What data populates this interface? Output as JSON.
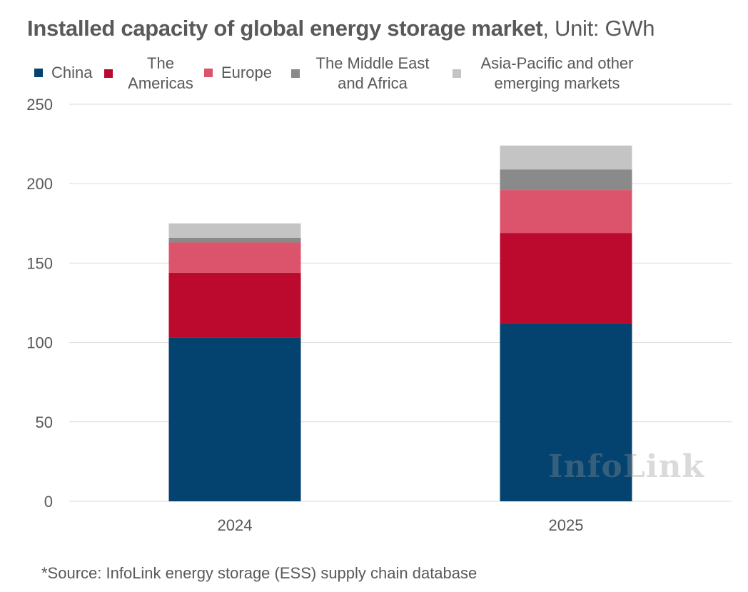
{
  "title": {
    "bold": "Installed capacity of global energy storage market",
    "rest": ", Unit: GWh"
  },
  "source": "*Source: InfoLink energy storage (ESS) supply chain database",
  "watermark": "InfoLink",
  "colors": {
    "china": "#04426f",
    "americas": "#bb0a2e",
    "europe": "#dc546b",
    "mea": "#8a8a8a",
    "apac": "#c4c4c4",
    "grid": "#d9d9d9"
  },
  "legend": [
    {
      "label": "China",
      "color": "#04426f"
    },
    {
      "label": "The Americas",
      "color": "#bb0a2e"
    },
    {
      "label": "Europe",
      "color": "#dc546b"
    },
    {
      "label": "The Middle East and Africa",
      "color": "#8a8a8a"
    },
    {
      "label": "Asia-Pacific and other emerging markets",
      "color": "#c4c4c4"
    }
  ],
  "chart_data": {
    "type": "bar",
    "stacked": true,
    "title": "Installed capacity of global energy storage market, Unit: GWh",
    "xlabel": "",
    "ylabel": "GWh",
    "categories": [
      "2024",
      "2025"
    ],
    "ylim": [
      0,
      250
    ],
    "yticks": [
      0,
      50,
      100,
      150,
      200,
      250
    ],
    "grid": true,
    "legend_position": "top",
    "series": [
      {
        "name": "China",
        "values": [
          103,
          112
        ]
      },
      {
        "name": "The Americas",
        "values": [
          41,
          57
        ]
      },
      {
        "name": "Europe",
        "values": [
          19,
          27
        ]
      },
      {
        "name": "The Middle East and Africa",
        "values": [
          3,
          13
        ]
      },
      {
        "name": "Asia-Pacific and other emerging markets",
        "values": [
          9,
          15
        ]
      }
    ]
  }
}
